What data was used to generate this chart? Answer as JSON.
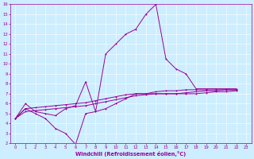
{
  "background_color": "#cceeff",
  "grid_color": "#ffffff",
  "line_color": "#990099",
  "markersize": 1.8,
  "linewidth": 0.7,
  "xlabel": "Windchill (Refroidissement éolien,°C)",
  "xlim": [
    -0.5,
    23.5
  ],
  "ylim": [
    2,
    16
  ],
  "xticks": [
    0,
    1,
    2,
    3,
    4,
    5,
    6,
    7,
    8,
    9,
    10,
    11,
    12,
    13,
    14,
    15,
    16,
    17,
    18,
    19,
    20,
    21,
    22,
    23
  ],
  "yticks": [
    2,
    3,
    4,
    5,
    6,
    7,
    8,
    9,
    10,
    11,
    12,
    13,
    14,
    15,
    16
  ],
  "series": [
    {
      "x": [
        0,
        1,
        2,
        3,
        4,
        5,
        6,
        7,
        8,
        9,
        10,
        11,
        12,
        13,
        14,
        15,
        16,
        17,
        18,
        19,
        20,
        21,
        22
      ],
      "y": [
        4.5,
        6.0,
        5.2,
        5.0,
        4.8,
        5.5,
        5.8,
        8.2,
        5.2,
        11.0,
        12.0,
        13.0,
        13.5,
        15.0,
        16.0,
        10.5,
        9.5,
        9.0,
        7.5,
        7.5,
        7.5,
        7.5,
        7.5
      ]
    },
    {
      "x": [
        0,
        1,
        2,
        3,
        4,
        5,
        6,
        7,
        8,
        9,
        10,
        11,
        12,
        13,
        14,
        15,
        16,
        17,
        18,
        19,
        20,
        21,
        22
      ],
      "y": [
        4.5,
        5.5,
        5.0,
        4.5,
        3.5,
        3.0,
        1.9,
        5.0,
        5.2,
        5.5,
        6.0,
        6.5,
        7.0,
        7.0,
        7.2,
        7.3,
        7.3,
        7.4,
        7.4,
        7.4,
        7.4,
        7.4,
        7.4
      ]
    },
    {
      "x": [
        0,
        1,
        2,
        3,
        4,
        5,
        6,
        7,
        8,
        9,
        10,
        11,
        12,
        13,
        14,
        15,
        16,
        17,
        18,
        19,
        20,
        21,
        22
      ],
      "y": [
        4.5,
        5.2,
        5.3,
        5.4,
        5.5,
        5.6,
        5.7,
        5.8,
        6.0,
        6.2,
        6.4,
        6.6,
        6.8,
        6.9,
        7.0,
        7.0,
        7.0,
        7.0,
        7.0,
        7.1,
        7.2,
        7.2,
        7.3
      ]
    },
    {
      "x": [
        0,
        1,
        2,
        3,
        4,
        5,
        6,
        7,
        8,
        9,
        10,
        11,
        12,
        13,
        14,
        15,
        16,
        17,
        18,
        19,
        20,
        21,
        22
      ],
      "y": [
        4.5,
        5.5,
        5.6,
        5.7,
        5.8,
        5.9,
        6.0,
        6.1,
        6.3,
        6.5,
        6.7,
        6.9,
        7.0,
        7.0,
        7.0,
        7.0,
        7.0,
        7.1,
        7.2,
        7.3,
        7.3,
        7.4,
        7.4
      ]
    }
  ],
  "tick_fontsize": 3.8,
  "xlabel_fontsize": 4.8
}
